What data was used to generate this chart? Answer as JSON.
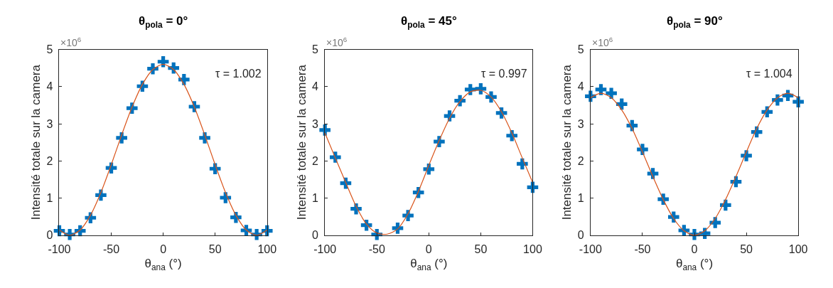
{
  "chart_data": [
    {
      "type": "scatter",
      "title": "θ$_{pola}$ = 0°",
      "xlabel": "θ$_{ana}$ (°)",
      "ylabel": "Intensité totale sur la camera",
      "xlim": [
        -100,
        100
      ],
      "xticks": [
        -100,
        -50,
        0,
        50,
        100
      ],
      "ylim": [
        0,
        5
      ],
      "yticks": [
        0,
        1,
        2,
        3,
        4,
        5
      ],
      "annotations": [
        "×10$^{6}$",
        "τ = 1.002"
      ],
      "series": [
        {
          "marker": "cross",
          "color": "#0072bd",
          "x": [
            -100,
            -90,
            -80,
            -70,
            -60,
            -50,
            -40,
            -30,
            -20,
            -10,
            0,
            10,
            20,
            30,
            40,
            50,
            60,
            70,
            80,
            90,
            100
          ],
          "values": [
            0.12,
            0.02,
            0.12,
            0.47,
            1.08,
            1.81,
            2.62,
            3.42,
            4.01,
            4.48,
            4.67,
            4.5,
            4.19,
            3.46,
            2.62,
            1.79,
            1.01,
            0.48,
            0.13,
            0.02,
            0.12
          ]
        },
        {
          "type": "line",
          "marker": "none",
          "line_style": "solid",
          "color": "#d95319",
          "x": [
            -100,
            -90,
            -80,
            -70,
            -60,
            -50,
            -40,
            -30,
            -20,
            -10,
            0,
            10,
            20,
            30,
            40,
            50,
            60,
            70,
            80,
            90,
            100
          ],
          "values": [
            0.14,
            0.0,
            0.14,
            0.54,
            1.15,
            1.9,
            2.7,
            3.45,
            4.06,
            4.46,
            4.6,
            4.46,
            4.06,
            3.45,
            2.7,
            1.9,
            1.15,
            0.54,
            0.14,
            0.0,
            0.14
          ]
        }
      ]
    },
    {
      "type": "scatter",
      "title": "θ$_{pola}$ = 45°",
      "xlabel": "θ$_{ana}$ (°)",
      "ylabel": "Intensité totale sur la camera",
      "xlim": [
        -100,
        100
      ],
      "xticks": [
        -100,
        -50,
        0,
        50,
        100
      ],
      "ylim": [
        0,
        5
      ],
      "yticks": [
        0,
        1,
        2,
        3,
        4,
        5
      ],
      "annotations": [
        "×10$^{6}$",
        "τ = 0.997"
      ],
      "series": [
        {
          "marker": "cross",
          "color": "#0072bd",
          "x": [
            -100,
            -90,
            -80,
            -70,
            -60,
            -50,
            -30,
            -20,
            -10,
            0,
            10,
            20,
            30,
            40,
            50,
            60,
            70,
            80,
            90,
            100
          ],
          "values": [
            2.83,
            2.1,
            1.4,
            0.71,
            0.27,
            0.02,
            0.19,
            0.53,
            1.15,
            1.78,
            2.52,
            3.21,
            3.62,
            3.92,
            3.94,
            3.72,
            3.29,
            2.68,
            1.92,
            1.29
          ]
        },
        {
          "type": "line",
          "marker": "none",
          "line_style": "solid",
          "color": "#d95319",
          "x": [
            -100,
            -90,
            -80,
            -70,
            -60,
            -50,
            -40,
            -30,
            -20,
            -10,
            0,
            10,
            20,
            30,
            40,
            50,
            60,
            70,
            80,
            90,
            100
          ],
          "values": [
            2.75,
            2.08,
            1.42,
            0.78,
            0.3,
            0.06,
            0.03,
            0.17,
            0.58,
            1.18,
            1.88,
            2.55,
            3.15,
            3.6,
            3.86,
            3.9,
            3.72,
            3.32,
            2.75,
            2.08,
            1.42
          ]
        }
      ]
    },
    {
      "type": "scatter",
      "title": "θ$_{pola}$ = 90°",
      "xlabel": "θ$_{ana}$ (°)",
      "ylabel": "Intensité totale sur la camera",
      "xlim": [
        -100,
        100
      ],
      "xticks": [
        -100,
        -50,
        0,
        50,
        100
      ],
      "ylim": [
        0,
        5
      ],
      "yticks": [
        0,
        1,
        2,
        3,
        4,
        5
      ],
      "annotations": [
        "×10$^{6}$",
        "τ = 1.004"
      ],
      "series": [
        {
          "marker": "cross",
          "color": "#0072bd",
          "x": [
            -100,
            -90,
            -80,
            -70,
            -60,
            -50,
            -40,
            -30,
            -20,
            -10,
            0,
            10,
            20,
            30,
            40,
            50,
            60,
            70,
            80,
            90,
            100
          ],
          "values": [
            3.74,
            3.92,
            3.82,
            3.53,
            2.95,
            2.31,
            1.66,
            0.97,
            0.49,
            0.13,
            0.02,
            0.05,
            0.34,
            0.81,
            1.44,
            2.14,
            2.78,
            3.32,
            3.64,
            3.76,
            3.59
          ]
        },
        {
          "type": "line",
          "marker": "none",
          "line_style": "solid",
          "color": "#d95319",
          "x": [
            -100,
            -90,
            -80,
            -70,
            -60,
            -50,
            -40,
            -30,
            -20,
            -10,
            0,
            10,
            20,
            30,
            40,
            50,
            60,
            70,
            80,
            90,
            100
          ],
          "values": [
            3.7,
            3.82,
            3.7,
            3.37,
            2.87,
            2.24,
            1.58,
            0.96,
            0.45,
            0.12,
            0.0,
            0.12,
            0.45,
            0.96,
            1.58,
            2.24,
            2.87,
            3.37,
            3.7,
            3.82,
            3.7
          ]
        }
      ]
    }
  ]
}
